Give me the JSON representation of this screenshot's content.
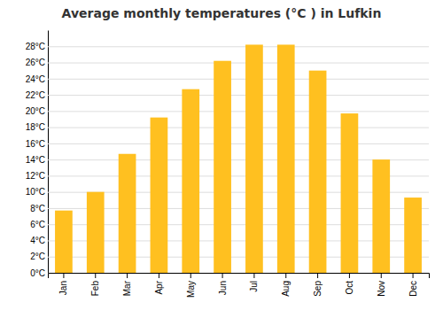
{
  "chart_data": {
    "type": "bar",
    "title": "Average monthly temperatures (°C ) in Lufkin",
    "categories": [
      "Jan",
      "Feb",
      "Mar",
      "Apr",
      "May",
      "Jun",
      "Jul",
      "Aug",
      "Sep",
      "Oct",
      "Nov",
      "Dec"
    ],
    "values": [
      7.7,
      10.0,
      14.7,
      19.2,
      22.7,
      26.2,
      28.2,
      28.2,
      25.0,
      19.7,
      14.0,
      9.3
    ],
    "color": "#FFC020",
    "ylim": [
      0,
      30
    ],
    "yticks": [
      {
        "value": 0,
        "label": "0°C"
      },
      {
        "value": 2,
        "label": "2°C"
      },
      {
        "value": 4,
        "label": "4°C"
      },
      {
        "value": 6,
        "label": "6°C"
      },
      {
        "value": 8,
        "label": "8°C"
      },
      {
        "value": 10,
        "label": "10°C"
      },
      {
        "value": 12,
        "label": "12°C"
      },
      {
        "value": 14,
        "label": "14°C"
      },
      {
        "value": 16,
        "label": "16°C"
      },
      {
        "value": 18,
        "label": "18°C"
      },
      {
        "value": 20,
        "label": "20°C"
      },
      {
        "value": 22,
        "label": "22°C"
      },
      {
        "value": 24,
        "label": "24°C"
      },
      {
        "value": 26,
        "label": "26°C"
      },
      {
        "value": 28,
        "label": "28°C"
      }
    ],
    "grid": true
  }
}
